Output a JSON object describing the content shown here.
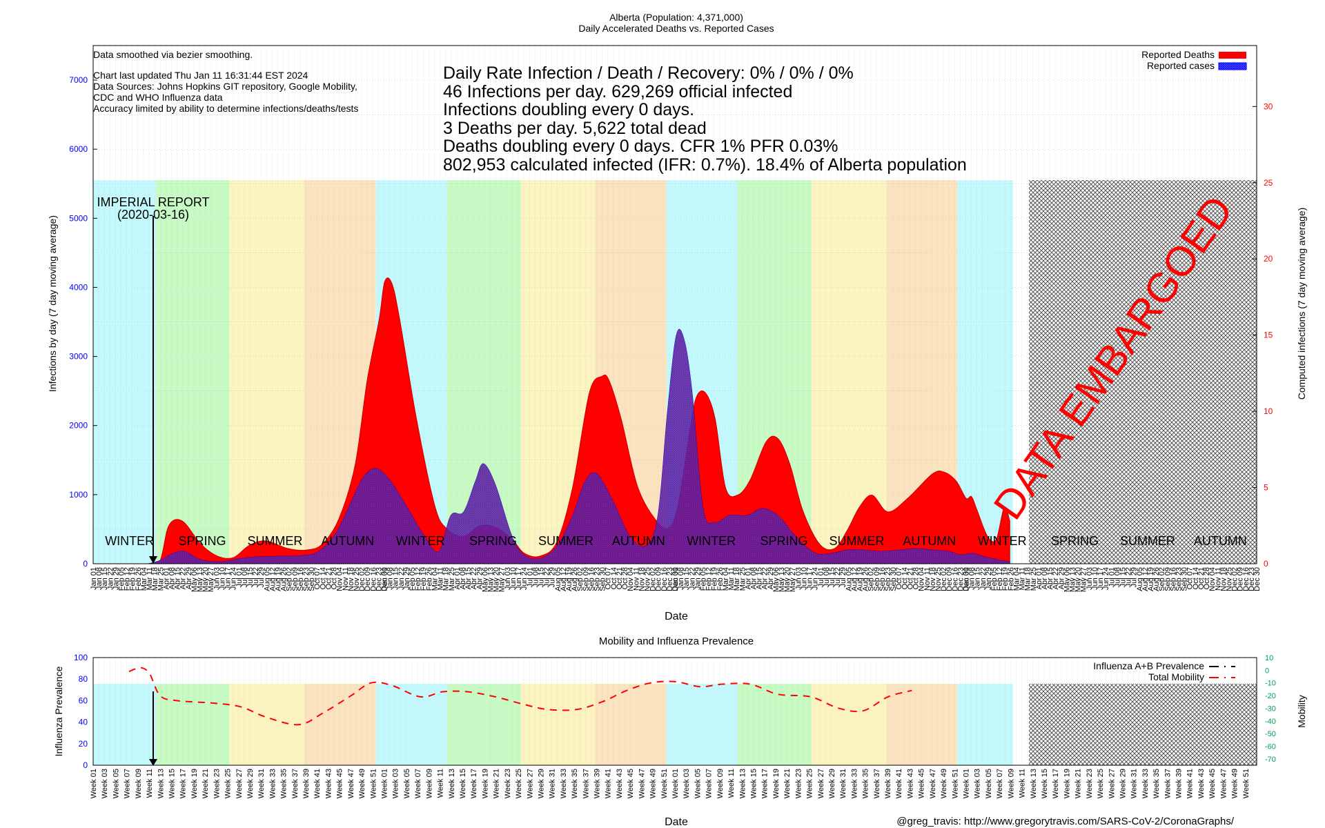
{
  "colors": {
    "winter": "#c3f9fc",
    "spring": "#c8fac3",
    "summer": "#fcf4c0",
    "autumn": "#fce3c0",
    "deaths": "#ff0000",
    "cases": "#0000ff",
    "left_axis": "#0000ff",
    "right_axis": "#ff0000",
    "mobility_axis": "#00a050",
    "mobility_line": "#ff0000"
  },
  "main_chart": {
    "title_line1": "Alberta (Population: 4,371,000)",
    "title_line2": "Daily Accelerated Deaths vs. Reported Cases",
    "notes": [
      "Data smoothed via bezier smoothing.",
      "Chart last updated Thu Jan 11 16:31:44 EST 2024",
      "Data Sources: Johns Hopkins GIT repository, Google Mobility,",
      "CDC and WHO Influenza data",
      "Accuracy limited by ability to determine infections/deaths/tests"
    ],
    "stats": [
      "Daily Rate Infection / Death / Recovery: 0% / 0% / 0%",
      "46 Infections per day.  629,269 official infected",
      "Infections doubling every 0 days.",
      "3 Deaths per day.  5,622 total dead",
      "Deaths doubling every 0 days.  CFR 1%  PFR 0.03%",
      "802,953 calculated infected (IFR: 0.7%).  18.4% of Alberta population"
    ],
    "legend": [
      "Reported Deaths",
      "Reported cases"
    ],
    "ylabel_left": "Infections by day (7 day moving average)",
    "ylabel_right": "Computed infections (7 day moving average)",
    "xlabel": "Date",
    "left_ticks": [
      "0",
      "1000",
      "2000",
      "3000",
      "4000",
      "5000",
      "6000",
      "7000"
    ],
    "right_ticks": [
      "0",
      "5",
      "10",
      "15",
      "20",
      "25",
      "30"
    ],
    "annotation_line1": "IMPERIAL REPORT",
    "annotation_line2": "(2020-03-16)",
    "embargo_text": "DATA EMBARGOED",
    "season_labels": [
      "WINTER",
      "SPRING",
      "SUMMER",
      "AUTUMN",
      "WINTER",
      "SPRING",
      "SUMMER",
      "AUTUMN",
      "WINTER",
      "SPRING",
      "SUMMER",
      "AUTUMN",
      "WINTER",
      "SPRING",
      "SUMMER",
      "AUTUMN"
    ],
    "date_ticks": [
      "Jan 01",
      "Jan 08",
      "Jan 15",
      "Jan 22",
      "Jan 29",
      "Feb 05",
      "Feb 12",
      "Feb 19",
      "Feb 26",
      "Mar 04",
      "Mar 11",
      "Mar 18",
      "Mar 25",
      "Apr 01",
      "Apr 08",
      "Apr 15",
      "Apr 22",
      "Apr 29",
      "May 06",
      "May 13",
      "May 20",
      "May 27",
      "Jun 03",
      "Jun 10",
      "Jun 17",
      "Jun 24",
      "Jul 01",
      "Jul 08",
      "Jul 15",
      "Jul 22",
      "Jul 29",
      "Aug 05",
      "Aug 12",
      "Aug 19",
      "Aug 26",
      "Sep 02",
      "Sep 09",
      "Sep 16",
      "Sep 23",
      "Sep 30",
      "Oct 07",
      "Oct 14",
      "Oct 21",
      "Oct 28",
      "Nov 04",
      "Nov 11",
      "Nov 18",
      "Nov 25",
      "Dec 02",
      "Dec 09",
      "Dec 16",
      "Dec 23",
      "Dec 30"
    ]
  },
  "mobility_chart": {
    "title": "Mobility and Influenza Prevalence",
    "ylabel_left": "Influenza Prevalence",
    "ylabel_right": "Mobility",
    "xlabel": "Date",
    "legend": [
      "Influenza A+B Prevalence",
      "Total Mobility"
    ],
    "left_ticks": [
      "0",
      "20",
      "40",
      "60",
      "80",
      "100"
    ],
    "right_ticks": [
      "10",
      "0",
      "-10",
      "-20",
      "-30",
      "-40",
      "-50",
      "-60",
      "-70"
    ],
    "week_ticks": [
      "Week 01",
      "Week 03",
      "Week 05",
      "Week 07",
      "Week 09",
      "Week 11",
      "Week 13",
      "Week 15",
      "Week 17",
      "Week 19",
      "Week 21",
      "Week 23",
      "Week 25",
      "Week 27",
      "Week 29",
      "Week 31",
      "Week 33",
      "Week 35",
      "Week 37",
      "Week 39",
      "Week 41",
      "Week 43",
      "Week 45",
      "Week 47",
      "Week 49",
      "Week 51"
    ]
  },
  "footer": "@greg_travis: http://www.gregorytravis.com/SARS-CoV-2/CoronaGraphs/",
  "chart_data": [
    {
      "type": "area",
      "title": "Alberta (Population: 4,371,000) Daily Accelerated Deaths vs. Reported Cases",
      "xlabel": "Date",
      "ylabel": "Infections by day (7 day moving average)",
      "ylabel_right": "Computed infections (7 day moving average)",
      "xlim": [
        "2020-01-01",
        "2023-12-31"
      ],
      "ylim": [
        0,
        7500
      ],
      "ylim_right": [
        0,
        34
      ],
      "grid": true,
      "legend_position": "top-right",
      "embargo_from": "2023-03-01",
      "series": [
        {
          "name": "Reported Deaths",
          "axis": "right",
          "x": [
            "2020-03-10",
            "2020-03-25",
            "2020-04-05",
            "2020-04-22",
            "2020-05-15",
            "2020-06-05",
            "2020-06-25",
            "2020-07-15",
            "2020-08-05",
            "2020-09-01",
            "2020-09-25",
            "2020-10-15",
            "2020-11-05",
            "2020-11-25",
            "2020-12-10",
            "2020-12-25",
            "2021-01-01",
            "2021-01-10",
            "2021-01-20",
            "2021-02-10",
            "2021-03-05",
            "2021-03-20",
            "2021-04-10",
            "2021-05-01",
            "2021-05-20",
            "2021-06-10",
            "2021-06-25",
            "2021-07-15",
            "2021-08-05",
            "2021-08-25",
            "2021-09-15",
            "2021-10-01",
            "2021-10-10",
            "2021-10-25",
            "2021-11-15",
            "2021-12-10",
            "2021-12-25",
            "2022-01-05",
            "2022-01-20",
            "2022-01-28",
            "2022-02-08",
            "2022-02-20",
            "2022-03-05",
            "2022-03-20",
            "2022-04-05",
            "2022-04-25",
            "2022-05-10",
            "2022-05-25",
            "2022-06-10",
            "2022-07-01",
            "2022-07-20",
            "2022-08-05",
            "2022-08-20",
            "2022-09-05",
            "2022-09-25",
            "2022-10-20",
            "2022-11-20",
            "2022-12-05",
            "2022-12-20",
            "2023-01-01",
            "2023-01-08",
            "2023-01-15",
            "2023-01-28",
            "2023-02-08",
            "2023-02-18",
            "2023-02-25"
          ],
          "y": [
            0,
            0.2,
            2.5,
            2.8,
            1.3,
            0.5,
            0.4,
            1.2,
            1.5,
            1.0,
            0.9,
            1.3,
            3,
            6.5,
            12,
            16,
            18.5,
            18.4,
            16,
            9.5,
            3.8,
            2.3,
            1.8,
            2.5,
            2.4,
            1.6,
            0.7,
            0.5,
            1.4,
            5,
            11.2,
            12.3,
            12,
            9.5,
            5,
            2.7,
            2.4,
            4,
            9,
            11,
            11.2,
            9.5,
            5,
            4.5,
            5.5,
            8,
            8.2,
            6.5,
            3.5,
            1.3,
            1.0,
            2.2,
            3.7,
            4.5,
            3.4,
            4.3,
            5.9,
            6.0,
            5.4,
            4.3,
            4.4,
            3.5,
            1.8,
            1.6,
            3.7,
            2.8
          ]
        },
        {
          "name": "Reported cases",
          "axis": "left",
          "x": [
            "2020-03-10",
            "2020-03-25",
            "2020-04-10",
            "2020-04-25",
            "2020-05-15",
            "2020-06-10",
            "2020-07-05",
            "2020-07-25",
            "2020-08-20",
            "2020-09-20",
            "2020-10-10",
            "2020-11-01",
            "2020-11-20",
            "2020-12-05",
            "2020-12-20",
            "2021-01-05",
            "2021-01-25",
            "2021-02-20",
            "2021-03-10",
            "2021-03-25",
            "2021-04-10",
            "2021-04-25",
            "2021-05-05",
            "2021-05-20",
            "2021-06-10",
            "2021-06-25",
            "2021-07-15",
            "2021-08-05",
            "2021-08-25",
            "2021-09-10",
            "2021-09-25",
            "2021-10-15",
            "2021-11-05",
            "2021-11-25",
            "2021-12-10",
            "2021-12-22",
            "2022-01-02",
            "2022-01-12",
            "2022-01-22",
            "2022-02-05",
            "2022-02-20",
            "2022-03-10",
            "2022-04-01",
            "2022-04-20",
            "2022-05-10",
            "2022-06-01",
            "2022-06-25",
            "2022-07-15",
            "2022-08-05",
            "2022-08-25",
            "2022-09-15",
            "2022-10-10",
            "2022-10-30",
            "2022-11-20",
            "2022-12-10",
            "2022-12-25",
            "2023-01-10",
            "2023-01-25",
            "2023-02-10",
            "2023-02-25"
          ],
          "y": [
            0,
            50,
            150,
            180,
            60,
            30,
            80,
            100,
            110,
            120,
            180,
            450,
            900,
            1250,
            1380,
            1250,
            900,
            400,
            180,
            700,
            750,
            1200,
            1450,
            1150,
            400,
            130,
            80,
            250,
            700,
            1200,
            1300,
            900,
            400,
            260,
            700,
            2200,
            3300,
            3250,
            2500,
            800,
            600,
            700,
            700,
            800,
            700,
            400,
            160,
            150,
            200,
            200,
            180,
            200,
            220,
            200,
            180,
            130,
            150,
            100,
            60,
            30
          ]
        }
      ],
      "annotations": [
        "IMPERIAL REPORT (2020-03-16)",
        "DATA EMBARGOED"
      ]
    },
    {
      "type": "line",
      "title": "Mobility and Influenza Prevalence",
      "xlabel": "Date",
      "ylabel": "Influenza Prevalence",
      "ylabel_right": "Mobility",
      "ylim": [
        0,
        100
      ],
      "ylim_right": [
        -75,
        10
      ],
      "grid": true,
      "legend_position": "top-right",
      "series": [
        {
          "name": "Total Mobility",
          "axis": "right",
          "x": [
            "2020-02-15",
            "2020-03-01",
            "2020-03-12",
            "2020-03-25",
            "2020-04-15",
            "2020-06-01",
            "2020-07-05",
            "2020-08-05",
            "2020-09-15",
            "2020-10-15",
            "2020-11-20",
            "2020-12-15",
            "2021-01-10",
            "2021-02-15",
            "2021-03-15",
            "2021-04-15",
            "2021-05-20",
            "2021-06-25",
            "2021-07-25",
            "2021-08-30",
            "2021-10-01",
            "2021-11-01",
            "2021-12-01",
            "2022-01-01",
            "2022-02-01",
            "2022-03-01",
            "2022-04-05",
            "2022-05-10",
            "2022-06-20",
            "2022-07-25",
            "2022-08-25",
            "2022-09-25",
            "2022-10-25"
          ],
          "y": [
            -1,
            2,
            -3,
            -20,
            -24,
            -26,
            -29,
            -37,
            -43,
            -34,
            -20,
            -10,
            -12,
            -21,
            -17,
            -17,
            -21,
            -27,
            -31,
            -31,
            -25,
            -16,
            -10,
            -9,
            -13,
            -11,
            -11,
            -19,
            -21,
            -30,
            -32,
            -21,
            -16
          ]
        },
        {
          "name": "Influenza A+B Prevalence",
          "axis": "left",
          "x": [],
          "y": []
        }
      ]
    }
  ]
}
